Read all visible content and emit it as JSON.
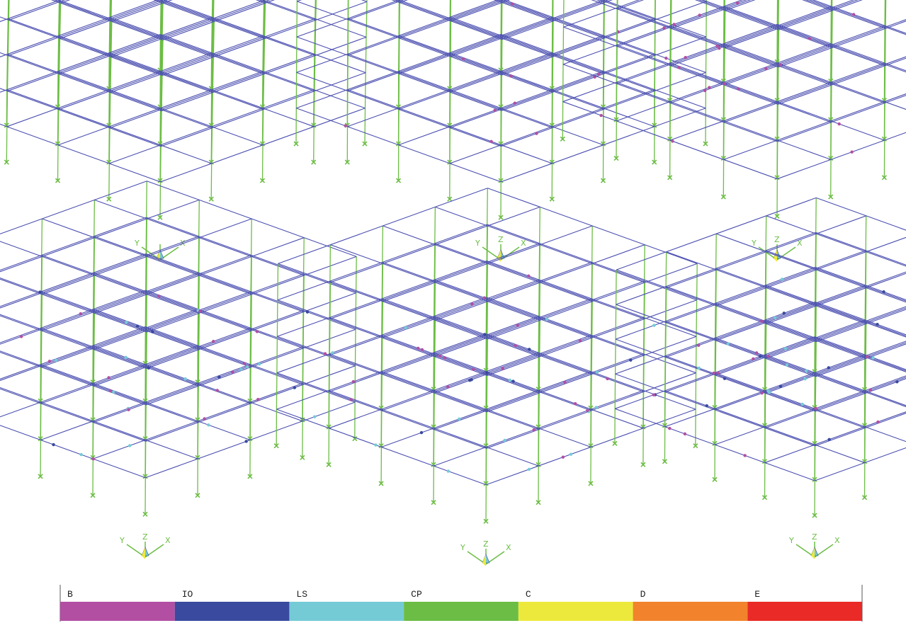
{
  "panels": [
    {
      "hinge_count": 0
    },
    {
      "hinge_count": 12
    },
    {
      "hinge_count": 28
    },
    {
      "hinge_count": 40
    },
    {
      "hinge_count": 44
    },
    {
      "hinge_count": 46
    }
  ],
  "axis_labels": {
    "x": "X",
    "y": "Y",
    "z": "Z"
  },
  "legend": {
    "items": [
      {
        "label": "B",
        "color": "#b24fa3"
      },
      {
        "label": "IO",
        "color": "#3a4a9e"
      },
      {
        "label": "LS",
        "color": "#74cbd6"
      },
      {
        "label": "CP",
        "color": "#6cbd45"
      },
      {
        "label": "C",
        "color": "#ede93c"
      },
      {
        "label": "D",
        "color": "#f2832c"
      },
      {
        "label": "E",
        "color": "#ea2a26"
      }
    ]
  },
  "colors": {
    "beam": "#4b4fb0",
    "column": "#6cbd45",
    "support": "#6cbd45"
  }
}
